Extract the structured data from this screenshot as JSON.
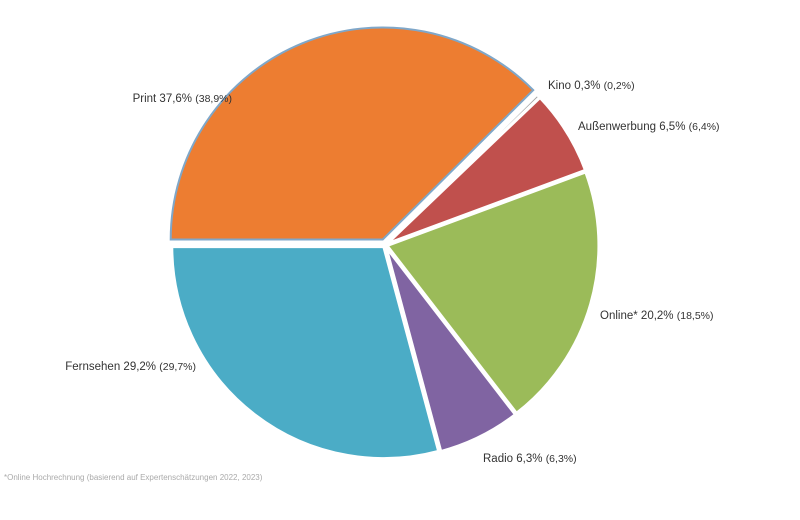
{
  "chart_data": {
    "type": "pie",
    "categories": [
      "Print",
      "Kino",
      "Außenwerbung",
      "Online*",
      "Radio",
      "Fernsehen"
    ],
    "values": [
      37.6,
      0.3,
      6.5,
      20.2,
      6.3,
      29.2
    ],
    "value_labels": [
      "37,6%",
      "0,3%",
      "6,5%",
      "20,2%",
      "6,3%",
      "29,2%"
    ],
    "previous_values": [
      38.9,
      0.2,
      6.4,
      18.5,
      6.3,
      29.7
    ],
    "previous_labels": [
      "(38,9%)",
      "(0,2%)",
      "(6,4%)",
      "(18,5%)",
      "(6,3%)",
      "(29,7%)"
    ],
    "colors": [
      "#ED7D31",
      "#A5A5A5",
      "#C0504D",
      "#9BBB59",
      "#8064A2",
      "#4BACC6"
    ],
    "footnote": "*Online Hochrechnung (basierend auf Expertenschätzungen 2022, 2023)"
  }
}
